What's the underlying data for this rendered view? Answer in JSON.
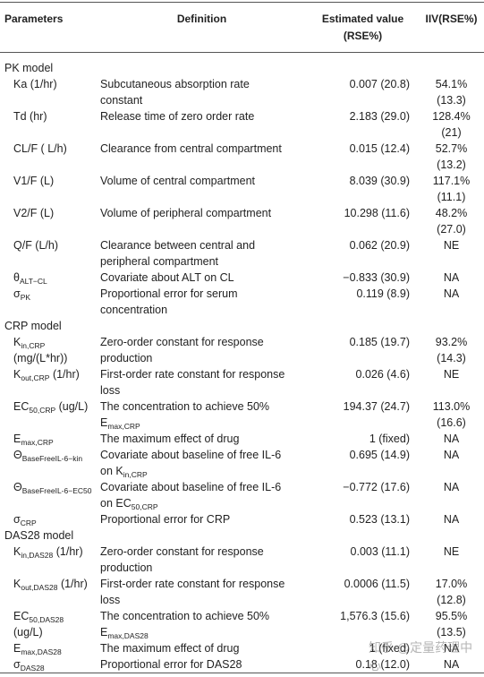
{
  "header": [
    "Parameters",
    "Definition",
    "Estimated value (RSE%)",
    "IIV(RSE%)"
  ],
  "sections": [
    {
      "title": "PK model",
      "rows": [
        {
          "param": [
            "Ka (1/hr)"
          ],
          "definition": [
            "Subcutaneous absorption rate constant"
          ],
          "estimate": "0.007 (20.8)",
          "iiv": "54.1% (13.3)"
        },
        {
          "param": [
            "Td (hr)"
          ],
          "definition": [
            "Release time of zero order rate"
          ],
          "estimate": "2.183 (29.0)",
          "iiv": "128.4% (21)"
        },
        {
          "param": [
            "CL/F ( L/h)"
          ],
          "definition": [
            "Clearance from central compartment"
          ],
          "estimate": "0.015 (12.4)",
          "iiv": "52.7% (13.2)"
        },
        {
          "param": [
            "V1/F (L)"
          ],
          "definition": [
            "Volume of central compartment"
          ],
          "estimate": "8.039 (30.9)",
          "iiv": "117.1% (11.1)"
        },
        {
          "param": [
            "V2/F (L)"
          ],
          "definition": [
            "Volume of peripheral compartment"
          ],
          "estimate": "10.298 (11.6)",
          "iiv": "48.2% (27.0)"
        },
        {
          "param": [
            "Q/F (L/h)"
          ],
          "definition": [
            "Clearance between central and peripheral compartment"
          ],
          "estimate": "0.062 (20.9)",
          "iiv": "NE"
        },
        {
          "param": [
            "θ",
            {
              "sub": "ALT−CL"
            }
          ],
          "definition": [
            "Covariate about ALT on CL"
          ],
          "estimate": "−0.833 (30.9)",
          "iiv": "NA"
        },
        {
          "param": [
            "σ",
            {
              "sub": "PK"
            }
          ],
          "definition": [
            "Proportional error for serum concentration"
          ],
          "estimate": "0.119 (8.9)",
          "iiv": "NA"
        }
      ]
    },
    {
      "title": "CRP model",
      "rows": [
        {
          "param": [
            "K",
            {
              "sub": "in,CRP"
            },
            " (mg/(L*hr))"
          ],
          "definition": [
            "Zero-order constant for response production"
          ],
          "estimate": "0.185 (19.7)",
          "iiv": "93.2% (14.3)"
        },
        {
          "param": [
            "K",
            {
              "sub": "out,CRP"
            },
            " (1/hr)"
          ],
          "definition": [
            "First-order rate constant for response loss"
          ],
          "estimate": "0.026 (4.6)",
          "iiv": "NE"
        },
        {
          "param": [
            "EC",
            {
              "sub": "50,CRP"
            },
            " (ug/L)"
          ],
          "definition": [
            "The concentration to achieve 50% E",
            {
              "sub": "max,CRP"
            }
          ],
          "estimate": "194.37 (24.7)",
          "iiv": "113.0% (16.6)"
        },
        {
          "param": [
            "E",
            {
              "sub": "max,CRP"
            }
          ],
          "definition": [
            "The maximum effect of drug"
          ],
          "estimate": "1 (fixed)",
          "iiv": "NA"
        },
        {
          "param": [
            "Θ",
            {
              "sub": "BaseFreeIL-6−kin"
            }
          ],
          "definition": [
            "Covariate about baseline of free IL-6 on K",
            {
              "sub": "in,CRP"
            }
          ],
          "estimate": "0.695 (14.9)",
          "iiv": "NA"
        },
        {
          "param": [
            "Θ",
            {
              "sub": "BaseFreeIL-6−EC50"
            }
          ],
          "definition": [
            "Covariate about baseline of free IL-6 on EC",
            {
              "sub": "50,CRP"
            }
          ],
          "estimate": "−0.772 (17.6)",
          "iiv": "NA"
        },
        {
          "param": [
            "σ",
            {
              "sub": "CRP"
            }
          ],
          "definition": [
            "Proportional error for CRP"
          ],
          "estimate": "0.523 (13.1)",
          "iiv": "NA"
        }
      ]
    },
    {
      "title": "DAS28 model",
      "rows": [
        {
          "param": [
            "K",
            {
              "sub": "in,DAS28"
            },
            " (1/hr)"
          ],
          "definition": [
            "Zero-order constant for response production"
          ],
          "estimate": "0.003 (11.1)",
          "iiv": "NE"
        },
        {
          "param": [
            "K",
            {
              "sub": "out,DAS28"
            },
            " (1/hr)"
          ],
          "definition": [
            "First-order rate constant for response loss"
          ],
          "estimate": "0.0006 (11.5)",
          "iiv": "17.0% (12.8)"
        },
        {
          "param": [
            "EC",
            {
              "sub": "50,DAS28"
            },
            " (ug/L)"
          ],
          "definition": [
            "The concentration to achieve 50% E",
            {
              "sub": "max,DAS28"
            }
          ],
          "estimate": "1,576.3 (15.6)",
          "iiv": "95.5% (13.5)"
        },
        {
          "param": [
            "E",
            {
              "sub": "max,DAS28"
            }
          ],
          "definition": [
            "The maximum effect of drug"
          ],
          "estimate": "1 (fixed)",
          "iiv": "NA"
        },
        {
          "param": [
            "σ",
            {
              "sub": "DAS28"
            }
          ],
          "definition": [
            "Proportional error for DAS28"
          ],
          "estimate": "0.18 (12.0)",
          "iiv": "NA"
        }
      ]
    }
  ],
  "watermark": "知乎 @定量药理中心"
}
